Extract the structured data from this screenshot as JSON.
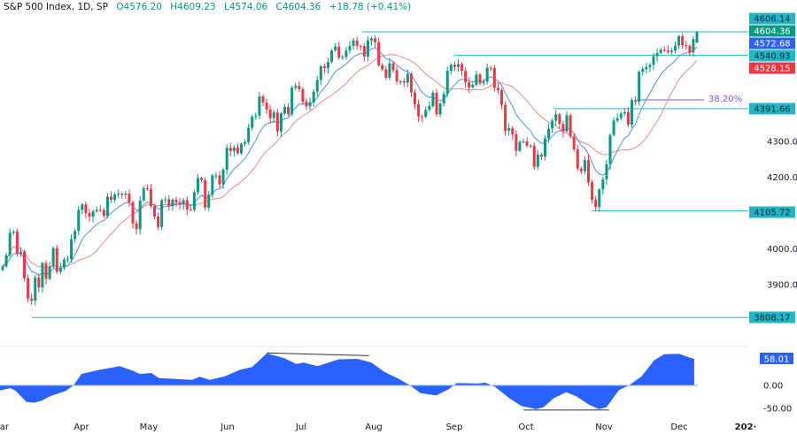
{
  "header": {
    "symbol": "S&P 500 Index, 1D, SP",
    "open": "O4576.20",
    "high": "H4609.23",
    "low": "L4574.06",
    "close": "C4604.36",
    "change": "+18.78 (+0.41%)"
  },
  "colors": {
    "up": "#089981",
    "down": "#f23645",
    "fast_ma": "#4f8ff0",
    "slow_ma": "#e88a8a",
    "levels": "#22b5c5",
    "oscillator": "#2962ff",
    "fib": "#7e57c2"
  },
  "chart_data": [
    {
      "type": "candlestick",
      "title": "S&P 500 Index, 1D, SP",
      "y_ticks": [
        "4300.00",
        "4200.00",
        "4000.00",
        "3900.00"
      ],
      "y_range": [
        3780,
        4650
      ],
      "x_ticks": [
        "ar",
        "Apr",
        "May",
        "Jun",
        "Jul",
        "Aug",
        "Sep",
        "Oct",
        "Nov",
        "Dec",
        "202·"
      ],
      "closes_by_month": {
        "Mar": [
          3951,
          3982,
          4045,
          4048,
          3986,
          3992,
          3918,
          3861,
          3855,
          3920,
          3892,
          3960,
          3916,
          3951,
          4002,
          3936,
          3948,
          3970,
          3971,
          4027,
          4050,
          4109
        ],
        "Apr": [
          4124,
          4100,
          4090,
          4105,
          4109,
          4108,
          4092,
          4146,
          4137,
          4151,
          4154,
          4151,
          4154,
          4130,
          4071,
          4055,
          4135,
          4169
        ],
        "May": [
          4167,
          4119,
          4090,
          4061,
          4136,
          4138,
          4119,
          4137,
          4130,
          4124,
          4136,
          4110,
          4109,
          4158,
          4198,
          4192,
          4115,
          4151,
          4205,
          4205,
          4180
        ],
        "Jun": [
          4221,
          4282,
          4273,
          4283,
          4267,
          4293,
          4298,
          4338,
          4369,
          4372,
          4426,
          4409,
          4389,
          4365,
          4381,
          4328,
          4378,
          4396,
          4376,
          4450
        ],
        "Jul": [
          4455,
          4446,
          4411,
          4398,
          4409,
          4439,
          4472,
          4510,
          4505,
          4522,
          4554,
          4565,
          4534,
          4536,
          4554,
          4567,
          4582,
          4567,
          4566,
          4537,
          4582,
          4588
        ],
        "Aug": [
          4577,
          4513,
          4501,
          4478,
          4518,
          4499,
          4468,
          4468,
          4464,
          4489,
          4437,
          4404,
          4370,
          4369,
          4388,
          4399,
          4436,
          4376,
          4406,
          4433,
          4497,
          4514,
          4508
        ],
        "Sep": [
          4516,
          4497,
          4465,
          4451,
          4458,
          4487,
          4462,
          4467,
          4506,
          4505,
          4450,
          4443,
          4402,
          4330,
          4337,
          4320,
          4274,
          4299,
          4300,
          4288
        ],
        "Oct": [
          4288,
          4229,
          4263,
          4258,
          4308,
          4336,
          4358,
          4376,
          4349,
          4328,
          4373,
          4314,
          4278,
          4224,
          4217,
          4248,
          4186,
          4137,
          4117,
          4166,
          4194
        ],
        "Nov": [
          4237,
          4318,
          4358,
          4365,
          4378,
          4382,
          4347,
          4415,
          4411,
          4495,
          4502,
          4508,
          4514,
          4538,
          4547,
          4556,
          4554,
          4550,
          4554,
          4568
        ],
        "Dec": [
          4594,
          4569,
          4567,
          4549,
          4585.58,
          4604.36
        ]
      },
      "last_bar": {
        "open": 4576.2,
        "high": 4609.23,
        "low": 4574.06,
        "close": 4604.36
      },
      "price_labels": [
        {
          "text": "4606.14",
          "price": 4606.14,
          "color": "#22b5c5",
          "line_from": "Jul 27"
        },
        {
          "text": "4604.36",
          "price": 4604.36,
          "color": "#089981"
        },
        {
          "text": "4572.68",
          "price": 4572.68,
          "color": "#2962ff"
        },
        {
          "text": "4540.93",
          "price": 4540.93,
          "color": "#22b5c5",
          "line_from": "Sep 1"
        },
        {
          "text": "4528.15",
          "price": 4528.15,
          "color": "#f23645"
        },
        {
          "text": "4391.66",
          "price": 4391.66,
          "color": "#22b5c5",
          "line_from": "Oct 12"
        },
        {
          "text": "4105.72",
          "price": 4105.72,
          "color": "#22b5c5",
          "line_from": "Oct 27"
        },
        {
          "text": "3808.17",
          "price": 3808.17,
          "color": "#22b5c5",
          "line_from": "Mar 13"
        }
      ],
      "fib_level": {
        "text": "38.20%",
        "price": 4416,
        "from": "Nov 14"
      }
    },
    {
      "type": "area",
      "y_ticks": [
        "0.00",
        "-50.00"
      ],
      "last_value_label": "58.01",
      "y_range": [
        -60,
        75
      ],
      "points": [
        [
          "Mar 1",
          -11
        ],
        [
          "Mar 5",
          -6
        ],
        [
          "Mar 7",
          -12
        ],
        [
          "Mar 11",
          -36
        ],
        [
          "Mar 14",
          -38
        ],
        [
          "Mar 17",
          -33
        ],
        [
          "Mar 20",
          -24
        ],
        [
          "Mar 26",
          -12
        ],
        [
          "Mar 29",
          0
        ],
        [
          "Apr 1",
          25
        ],
        [
          "Apr 8",
          33
        ],
        [
          "Apr 18",
          42
        ],
        [
          "Apr 24",
          32
        ],
        [
          "Apr 27",
          25
        ],
        [
          "May 2",
          27
        ],
        [
          "May 5",
          16
        ],
        [
          "May 15",
          13
        ],
        [
          "May 18",
          12
        ],
        [
          "May 21",
          19
        ],
        [
          "May 25",
          12
        ],
        [
          "May 31",
          20
        ],
        [
          "Jun 6",
          34
        ],
        [
          "Jun 11",
          40
        ],
        [
          "Jun 17",
          70
        ],
        [
          "Jun 24",
          60
        ],
        [
          "Jun 29",
          47
        ],
        [
          "Jul 2",
          50
        ],
        [
          "Jul 8",
          42
        ],
        [
          "Jul 17",
          57
        ],
        [
          "Jul 25",
          58
        ],
        [
          "Jul 31",
          50
        ],
        [
          "Aug 5",
          30
        ],
        [
          "Aug 11",
          13
        ],
        [
          "Aug 15",
          0
        ],
        [
          "Aug 19",
          -17
        ],
        [
          "Aug 25",
          -22
        ],
        [
          "Aug 30",
          -8
        ],
        [
          "Sep 2",
          5
        ],
        [
          "Sep 11",
          4
        ],
        [
          "Sep 14",
          6
        ],
        [
          "Sep 18",
          -3
        ],
        [
          "Sep 24",
          -28
        ],
        [
          "Sep 29",
          -45
        ],
        [
          "Oct 5",
          -52
        ],
        [
          "Oct 8",
          -48
        ],
        [
          "Oct 12",
          -28
        ],
        [
          "Oct 17",
          -15
        ],
        [
          "Oct 21",
          -24
        ],
        [
          "Oct 26",
          -42
        ],
        [
          "Oct 30",
          -52
        ],
        [
          "Nov 2",
          -48
        ],
        [
          "Nov 7",
          -10
        ],
        [
          "Nov 11",
          0
        ],
        [
          "Nov 16",
          20
        ],
        [
          "Nov 21",
          55
        ],
        [
          "Nov 25",
          68
        ],
        [
          "Dec 1",
          69
        ],
        [
          "Dec 5",
          62
        ],
        [
          "Dec 8",
          58.01
        ]
      ],
      "trendlines": [
        {
          "from": [
            "Jun 17",
            71
          ],
          "to": [
            "Jul 30",
            65
          ]
        },
        {
          "from": [
            "Sep 30",
            -54
          ],
          "to": [
            "Nov 3",
            -54
          ]
        }
      ]
    }
  ]
}
